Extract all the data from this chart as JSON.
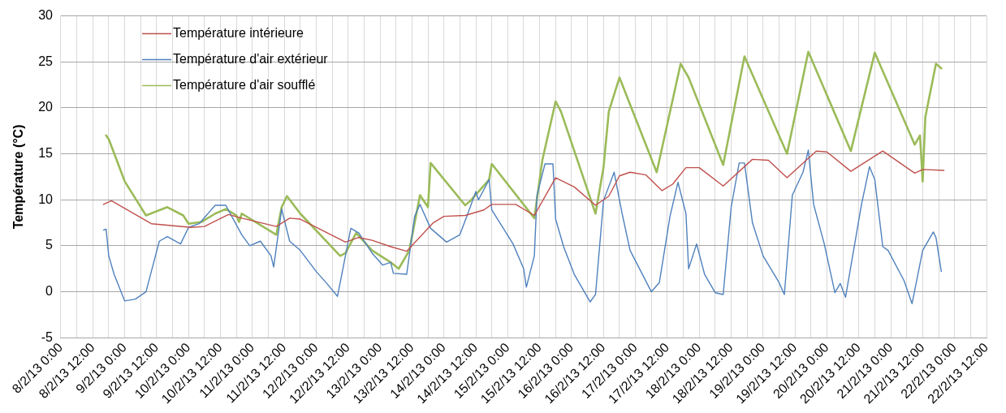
{
  "chart_data": {
    "type": "line",
    "ylabel": "Température (°C)",
    "xlim": [
      "--02-08T00:00",
      "--02-22T12:00"
    ],
    "xticks": [
      {
        "value": "--02-08T00:00",
        "label": "8/2/13 0:00"
      },
      {
        "value": "--02-08T06:00",
        "label": null
      },
      {
        "value": "--02-08T12:00",
        "label": "8/2/13 12:00"
      },
      {
        "value": "--02-08T18:00",
        "label": null
      },
      {
        "value": "--02-09T00:00",
        "label": "9/2/13 0:00"
      },
      {
        "value": "--02-09T06:00",
        "label": null
      },
      {
        "value": "--02-09T12:00",
        "label": "9/2/13 12:00"
      },
      {
        "value": "--02-09T18:00",
        "label": null
      },
      {
        "value": "--02-10T00:00",
        "label": "10/2/13 0:00"
      },
      {
        "value": "--02-10T06:00",
        "label": null
      },
      {
        "value": "--02-10T12:00",
        "label": "10/2/13 12:00"
      },
      {
        "value": "--02-10T18:00",
        "label": null
      },
      {
        "value": "--02-11T00:00",
        "label": "11/2/13 0:00"
      },
      {
        "value": "--02-11T06:00",
        "label": null
      },
      {
        "value": "--02-11T12:00",
        "label": "11/2/13 12:00"
      },
      {
        "value": "--02-11T18:00",
        "label": null
      },
      {
        "value": "--02-12T00:00",
        "label": "12/2/13 0:00"
      },
      {
        "value": "--02-12T06:00",
        "label": null
      },
      {
        "value": "--02-12T12:00",
        "label": "12/2/13 12:00"
      },
      {
        "value": "--02-12T18:00",
        "label": null
      },
      {
        "value": "--02-13T00:00",
        "label": "13/2/13 0:00"
      },
      {
        "value": "--02-13T06:00",
        "label": null
      },
      {
        "value": "--02-13T12:00",
        "label": "13/2/13 12:00"
      },
      {
        "value": "--02-13T18:00",
        "label": null
      },
      {
        "value": "--02-14T00:00",
        "label": "14/2/13 0:00"
      },
      {
        "value": "--02-14T06:00",
        "label": null
      },
      {
        "value": "--02-14T12:00",
        "label": "14/2/13 12:00"
      },
      {
        "value": "--02-14T18:00",
        "label": null
      },
      {
        "value": "--02-15T00:00",
        "label": "15/2/13 0:00"
      },
      {
        "value": "--02-15T06:00",
        "label": null
      },
      {
        "value": "--02-15T12:00",
        "label": "15/2/13 12:00"
      },
      {
        "value": "--02-15T18:00",
        "label": null
      },
      {
        "value": "--02-16T00:00",
        "label": "16/2/13 0:00"
      },
      {
        "value": "--02-16T06:00",
        "label": null
      },
      {
        "value": "--02-16T12:00",
        "label": "16/2/13 12:00"
      },
      {
        "value": "--02-16T18:00",
        "label": null
      },
      {
        "value": "--02-17T00:00",
        "label": "17/2/13 0:00"
      },
      {
        "value": "--02-17T06:00",
        "label": null
      },
      {
        "value": "--02-17T12:00",
        "label": "17/2/13 12:00"
      },
      {
        "value": "--02-17T18:00",
        "label": null
      },
      {
        "value": "--02-18T00:00",
        "label": "18/2/13 0:00"
      },
      {
        "value": "--02-18T06:00",
        "label": null
      },
      {
        "value": "--02-18T12:00",
        "label": "18/2/13 12:00"
      },
      {
        "value": "--02-18T18:00",
        "label": null
      },
      {
        "value": "--02-19T00:00",
        "label": "19/2/13 0:00"
      },
      {
        "value": "--02-19T06:00",
        "label": null
      },
      {
        "value": "--02-19T12:00",
        "label": "19/2/13 12:00"
      },
      {
        "value": "--02-19T18:00",
        "label": null
      },
      {
        "value": "--02-20T00:00",
        "label": "20/2/13 0:00"
      },
      {
        "value": "--02-20T06:00",
        "label": null
      },
      {
        "value": "--02-20T12:00",
        "label": "20/2/13 12:00"
      },
      {
        "value": "--02-20T18:00",
        "label": null
      },
      {
        "value": "--02-21T00:00",
        "label": "21/2/13 0:00"
      },
      {
        "value": "--02-21T06:00",
        "label": null
      },
      {
        "value": "--02-21T12:00",
        "label": "21/2/13 12:00"
      },
      {
        "value": "--02-21T18:00",
        "label": null
      },
      {
        "value": "--02-22T00:00",
        "label": "22/2/13 0:00"
      },
      {
        "value": "--02-22T06:00",
        "label": null
      },
      {
        "value": "--02-22T12:00",
        "label": "22/2/13 12:00"
      }
    ],
    "ylim": [
      -5,
      30
    ],
    "yticks": [
      -5,
      0,
      5,
      10,
      15,
      20,
      25,
      30
    ],
    "grid": true,
    "legend": "top left",
    "series": [
      {
        "name": "Température intérieure",
        "color": "#c0504d",
        "x": [
          "--02-08T16:00",
          "--02-08T19:00",
          "--02-09T10:00",
          "--02-10T01:00",
          "--02-10T06:00",
          "--02-10T15:00",
          "--02-10T20:00",
          "--02-11T09:00",
          "--02-11T14:00",
          "--02-11T18:00",
          "--02-12T11:00",
          "--02-12T16:00",
          "--02-12T21:00",
          "--02-13T04:00",
          "--02-13T10:00",
          "--02-13T20:00",
          "--02-14T00:00",
          "--02-14T08:00",
          "--02-14T15:00",
          "--02-14T18:00",
          "--02-15T03:00",
          "--02-15T10:00",
          "--02-15T18:00",
          "--02-16T01:00",
          "--02-16T09:00",
          "--02-16T14:00",
          "--02-16T18:00",
          "--02-16T22:00",
          "--02-17T04:00",
          "--02-17T10:00",
          "--02-17T14:00",
          "--02-17T19:00",
          "--02-18T00:00",
          "--02-18T09:00",
          "--02-18T20:00",
          "--02-19T02:00",
          "--02-19T09:00",
          "--02-19T20:00",
          "--02-20T00:00",
          "--02-20T09:00",
          "--02-20T21:00",
          "--02-21T09:00",
          "--02-21T12:00",
          "--02-21T20:00"
        ],
        "values": [
          9.5,
          9.9,
          7.4,
          7.0,
          7.1,
          8.4,
          8.0,
          7.1,
          8.0,
          7.9,
          5.4,
          5.9,
          5.6,
          4.9,
          4.4,
          7.5,
          8.2,
          8.3,
          8.9,
          9.5,
          9.5,
          8.3,
          12.4,
          11.4,
          9.4,
          10.4,
          12.6,
          13.0,
          12.7,
          11.0,
          11.7,
          13.5,
          13.5,
          11.5,
          14.4,
          14.3,
          12.4,
          15.3,
          15.2,
          13.1,
          15.3,
          12.9,
          13.3,
          13.2
        ]
      },
      {
        "name": "Température d'air extérieur",
        "color": "#4f81bd",
        "x": [
          "--02-08T16:00",
          "--02-08T17:00",
          "--02-08T18:00",
          "--02-08T20:00",
          "--02-09T00:00",
          "--02-09T04:00",
          "--02-09T08:00",
          "--02-09T10:00",
          "--02-09T13:00",
          "--02-09T16:00",
          "--02-09T21:00",
          "--02-10T00:00",
          "--02-10T04:00",
          "--02-10T10:00",
          "--02-10T14:00",
          "--02-10T20:00",
          "--02-10T23:00",
          "--02-11T03:00",
          "--02-11T07:00",
          "--02-11T08:00",
          "--02-11T11:00",
          "--02-11T14:00",
          "--02-11T18:00",
          "--02-12T00:00",
          "--02-12T04:00",
          "--02-12T08:00",
          "--02-12T13:00",
          "--02-12T16:00",
          "--02-12T21:00",
          "--02-13T01:00",
          "--02-13T04:00",
          "--02-13T05:00",
          "--02-13T10:00",
          "--02-13T13:00",
          "--02-13T15:00",
          "--02-13T19:00",
          "--02-14T01:00",
          "--02-14T06:00",
          "--02-14T09:00",
          "--02-14T12:00",
          "--02-14T13:00",
          "--02-14T17:00",
          "--02-14T18:00",
          "--02-15T02:00",
          "--02-15T06:00",
          "--02-15T07:00",
          "--02-15T10:00",
          "--02-15T11:00",
          "--02-15T14:00",
          "--02-15T17:00",
          "--02-15T18:00",
          "--02-15T21:00",
          "--02-16T01:00",
          "--02-16T07:00",
          "--02-16T09:00",
          "--02-16T12:00",
          "--02-16T16:00",
          "--02-16T19:00",
          "--02-16T22:00",
          "--02-17T06:00",
          "--02-17T09:00",
          "--02-17T13:00",
          "--02-17T16:00",
          "--02-17T19:00",
          "--02-17T20:00",
          "--02-17T23:00",
          "--02-18T02:00",
          "--02-18T06:00",
          "--02-18T09:00",
          "--02-18T12:00",
          "--02-18T15:00",
          "--02-18T17:00",
          "--02-18T20:00",
          "--02-19T00:00",
          "--02-19T06:00",
          "--02-19T08:00",
          "--02-19T11:00",
          "--02-19T15:00",
          "--02-19T17:00",
          "--02-19T19:00",
          "--02-19T23:00",
          "--02-20T03:00",
          "--02-20T05:00",
          "--02-20T07:00",
          "--02-20T13:00",
          "--02-20T16:00",
          "--02-20T18:00",
          "--02-20T21:00",
          "--02-20T23:00",
          "--02-21T05:00",
          "--02-21T08:00",
          "--02-21T12:00",
          "--02-21T16:00",
          "--02-21T17:00",
          "--02-21T19:00"
        ],
        "values": [
          6.7,
          6.8,
          3.9,
          1.9,
          -1.0,
          -0.8,
          0.0,
          2.2,
          5.5,
          6.0,
          5.2,
          7.0,
          7.4,
          9.4,
          9.4,
          6.2,
          5.0,
          5.5,
          3.9,
          2.7,
          9.0,
          5.5,
          4.5,
          2.2,
          0.9,
          -0.5,
          6.9,
          6.4,
          4.2,
          2.9,
          3.2,
          2.0,
          1.9,
          8.2,
          9.5,
          6.9,
          5.4,
          6.2,
          8.5,
          10.9,
          10.0,
          12.2,
          8.9,
          5.2,
          2.5,
          0.5,
          3.9,
          10.5,
          13.9,
          13.9,
          7.9,
          4.9,
          1.9,
          -1.1,
          -0.3,
          9.9,
          13.0,
          8.5,
          4.5,
          0.0,
          1.0,
          8.2,
          11.9,
          8.5,
          2.5,
          5.2,
          1.9,
          -0.1,
          -0.3,
          9.2,
          14.0,
          14.0,
          7.5,
          3.9,
          1.0,
          -0.3,
          10.5,
          13.0,
          15.4,
          9.5,
          5.2,
          -0.1,
          0.9,
          -0.6,
          9.5,
          13.6,
          12.2,
          4.9,
          4.5,
          1.2,
          -1.3,
          4.5,
          6.5,
          5.9,
          2.2
        ]
      },
      {
        "name": "Température d'air soufflé",
        "color": "#9bbb59",
        "x": [
          "--02-08T17:00",
          "--02-08T18:00",
          "--02-09T00:00",
          "--02-09T08:00",
          "--02-09T16:00",
          "--02-09T22:00",
          "--02-10T00:00",
          "--02-10T05:00",
          "--02-10T10:00",
          "--02-10T14:00",
          "--02-10T18:00",
          "--02-10T19:00",
          "--02-10T20:00",
          "--02-11T09:00",
          "--02-11T11:00",
          "--02-11T13:00",
          "--02-11T18:00",
          "--02-12T09:00",
          "--02-12T11:00",
          "--02-12T15:00",
          "--02-12T21:00",
          "--02-13T04:00",
          "--02-13T07:00",
          "--02-13T11:00",
          "--02-13T15:00",
          "--02-13T18:00",
          "--02-13T19:00",
          "--02-14T08:00",
          "--02-14T10:00",
          "--02-14T17:00",
          "--02-14T18:00",
          "--02-15T10:00",
          "--02-15T13:00",
          "--02-15T18:00",
          "--02-15T20:00",
          "--02-16T09:00",
          "--02-16T12:00",
          "--02-16T14:00",
          "--02-16T18:00",
          "--02-17T08:00",
          "--02-17T17:00",
          "--02-17T20:00",
          "--02-18T09:00",
          "--02-18T17:00",
          "--02-19T09:00",
          "--02-19T17:00",
          "--02-20T09:00",
          "--02-20T18:00",
          "--02-21T09:00",
          "--02-21T11:00",
          "--02-21T12:00",
          "--02-21T13:00",
          "--02-21T17:00",
          "--02-21T19:00"
        ],
        "values": [
          17.0,
          16.6,
          12.0,
          8.3,
          9.2,
          8.3,
          7.4,
          7.6,
          8.5,
          9.0,
          8.3,
          7.6,
          8.5,
          6.2,
          9.2,
          10.4,
          8.5,
          3.9,
          4.2,
          6.4,
          4.5,
          3.2,
          2.5,
          4.5,
          10.5,
          9.2,
          14.0,
          9.4,
          9.9,
          12.2,
          13.9,
          8.0,
          14.3,
          20.7,
          19.6,
          8.5,
          13.5,
          19.6,
          23.3,
          13.0,
          24.8,
          23.3,
          13.8,
          25.6,
          15.0,
          26.1,
          15.3,
          26.0,
          16.0,
          17.0,
          12.0,
          19.0,
          24.8,
          24.3
        ]
      }
    ]
  }
}
